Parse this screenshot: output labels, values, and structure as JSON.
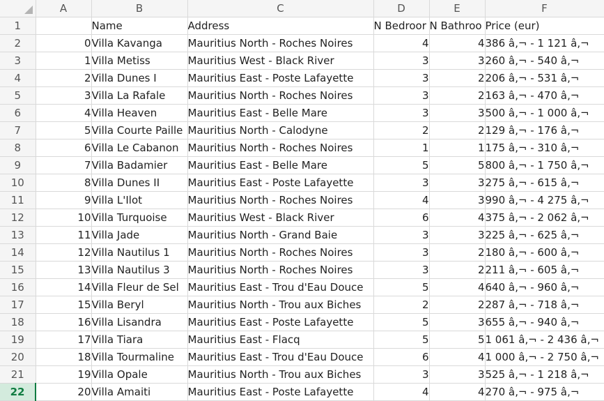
{
  "columns": [
    "A",
    "B",
    "C",
    "D",
    "E",
    "F"
  ],
  "row_numbers": [
    "1",
    "2",
    "3",
    "4",
    "5",
    "6",
    "7",
    "8",
    "9",
    "10",
    "11",
    "12",
    "13",
    "14",
    "15",
    "16",
    "17",
    "18",
    "19",
    "20",
    "21",
    "22"
  ],
  "selected_row": "22",
  "header_row": {
    "a": "",
    "name": "Name",
    "address": "Address",
    "bedrooms": "N Bedroor",
    "bathrooms": "N Bathroo",
    "price": "Price (eur)"
  },
  "rows": [
    {
      "idx": "0",
      "name": "Villa Kavanga",
      "address": "Mauritius North - Roches Noires",
      "bed": "4",
      "bath": "4",
      "price": "386 â‚¬ - 1 121 â‚¬"
    },
    {
      "idx": "1",
      "name": "Villa Metiss",
      "address": "Mauritius West - Black River",
      "bed": "3",
      "bath": "3",
      "price": "260 â‚¬ - 540 â‚¬"
    },
    {
      "idx": "2",
      "name": "Villa Dunes I",
      "address": "Mauritius East - Poste Lafayette",
      "bed": "3",
      "bath": "2",
      "price": "206 â‚¬ - 531 â‚¬"
    },
    {
      "idx": "3",
      "name": "Villa La Rafale",
      "address": "Mauritius North - Roches Noires",
      "bed": "3",
      "bath": "2",
      "price": "163 â‚¬ - 470 â‚¬"
    },
    {
      "idx": "4",
      "name": "Villa Heaven",
      "address": "Mauritius East - Belle Mare",
      "bed": "3",
      "bath": "3",
      "price": "500 â‚¬ - 1 000 â‚¬"
    },
    {
      "idx": "5",
      "name": "Villa Courte Paille",
      "address": "Mauritius North - Calodyne",
      "bed": "2",
      "bath": "2",
      "price": "129 â‚¬ - 176 â‚¬"
    },
    {
      "idx": "6",
      "name": "Villa Le Cabanon",
      "address": "Mauritius North - Roches Noires",
      "bed": "1",
      "bath": "1",
      "price": "175 â‚¬ - 310 â‚¬"
    },
    {
      "idx": "7",
      "name": "Villa Badamier",
      "address": "Mauritius East - Belle Mare",
      "bed": "5",
      "bath": "5",
      "price": "800 â‚¬ - 1 750 â‚¬"
    },
    {
      "idx": "8",
      "name": "Villa Dunes II",
      "address": "Mauritius East - Poste Lafayette",
      "bed": "3",
      "bath": "3",
      "price": "275 â‚¬ - 615 â‚¬"
    },
    {
      "idx": "9",
      "name": "Villa L'Ilot",
      "address": "Mauritius North - Roches Noires",
      "bed": "4",
      "bath": "3",
      "price": "990 â‚¬ - 4 275 â‚¬"
    },
    {
      "idx": "10",
      "name": "Villa Turquoise",
      "address": "Mauritius West - Black River",
      "bed": "6",
      "bath": "4",
      "price": "375 â‚¬ - 2 062 â‚¬"
    },
    {
      "idx": "11",
      "name": "Villa Jade",
      "address": "Mauritius North - Grand Baie",
      "bed": "3",
      "bath": "3",
      "price": "225 â‚¬ - 625 â‚¬"
    },
    {
      "idx": "12",
      "name": "Villa Nautilus 1",
      "address": "Mauritius North - Roches Noires",
      "bed": "3",
      "bath": "2",
      "price": "180 â‚¬ - 600 â‚¬"
    },
    {
      "idx": "13",
      "name": "Villa Nautilus 3",
      "address": "Mauritius North - Roches Noires",
      "bed": "3",
      "bath": "2",
      "price": "211 â‚¬ - 605 â‚¬"
    },
    {
      "idx": "14",
      "name": "Villa Fleur de Sel",
      "address": "Mauritius East - Trou d'Eau Douce",
      "bed": "5",
      "bath": "4",
      "price": "640 â‚¬ - 960 â‚¬"
    },
    {
      "idx": "15",
      "name": "Villa Beryl",
      "address": "Mauritius North - Trou aux Biches",
      "bed": "2",
      "bath": "2",
      "price": "287 â‚¬ - 718 â‚¬"
    },
    {
      "idx": "16",
      "name": "Villa Lisandra",
      "address": "Mauritius East - Poste Lafayette",
      "bed": "5",
      "bath": "3",
      "price": "655 â‚¬ - 940 â‚¬"
    },
    {
      "idx": "17",
      "name": "Villa Tiara",
      "address": "Mauritius East - Flacq",
      "bed": "5",
      "bath": "5",
      "price": "1 061 â‚¬ - 2 436 â‚¬"
    },
    {
      "idx": "18",
      "name": "Villa Tourmaline",
      "address": "Mauritius East - Trou d'Eau Douce",
      "bed": "6",
      "bath": "4",
      "price": "1 000 â‚¬ - 2 750 â‚¬"
    },
    {
      "idx": "19",
      "name": "Villa Opale",
      "address": "Mauritius North - Trou aux Biches",
      "bed": "3",
      "bath": "3",
      "price": "525 â‚¬ - 1 218 â‚¬"
    },
    {
      "idx": "20",
      "name": "Villa Amaiti",
      "address": "Mauritius East - Poste Lafayette",
      "bed": "4",
      "bath": "4",
      "price": "270 â‚¬ - 975 â‚¬"
    }
  ]
}
